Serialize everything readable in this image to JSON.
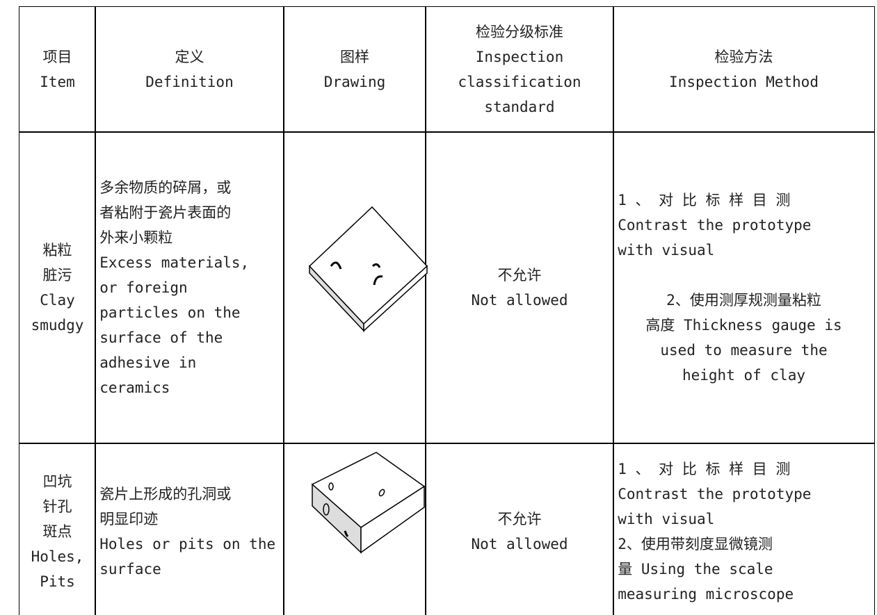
{
  "table": {
    "header": [
      [
        "项目",
        "Item"
      ],
      [
        "定义",
        "Definition"
      ],
      [
        "图样",
        "Drawing"
      ],
      [
        "检验分级标准",
        "Inspection",
        "classification",
        "standard"
      ],
      [
        "检验方法",
        "Inspection Method"
      ]
    ],
    "rows": [
      {
        "item": [
          "粘粒",
          "脏污",
          "Clay",
          "smudgy"
        ],
        "definition": [
          "多余物质的碎屑，或",
          "者粘附于瓷片表面的",
          "外来小颗粒",
          "Excess materials,",
          "or foreign",
          "particles on the",
          "surface of the",
          "adhesive in",
          "ceramics"
        ],
        "standard": [
          "不允许",
          "Not allowed"
        ],
        "method": [
          [
            "1 、 对 比 标 样 目 测",
            "Contrast the prototype",
            "with visual"
          ],
          [
            "2、使用测厚规测量粘粒",
            "高度 Thickness gauge is",
            "used to measure the",
            "height of clay"
          ]
        ]
      },
      {
        "item": [
          "凹坑",
          "针孔",
          "斑点",
          "Holes,",
          "Pits"
        ],
        "definition": [
          "瓷片上形成的孔洞或",
          "明显印迹",
          "Holes or pits on the",
          "surface"
        ],
        "standard": [
          "不允许",
          "Not allowed"
        ],
        "method": [
          [
            "1 、 对 比 标 样 目 测",
            "Contrast the prototype",
            "with visual",
            "2、使用带刻度显微镜测",
            "量 Using the scale",
            "measuring microscope"
          ]
        ]
      }
    ]
  }
}
